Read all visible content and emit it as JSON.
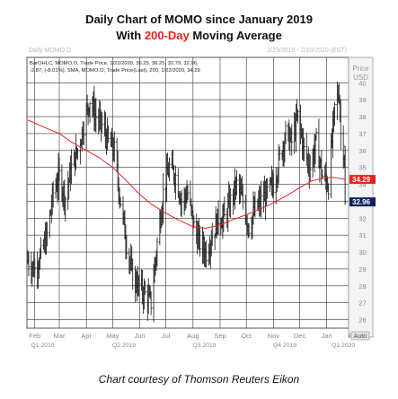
{
  "header": {
    "title_line1": "Daily Chart of MOMO since January 2019",
    "title_line2_pre": "With ",
    "title_line2_highlight": "200-Day",
    "title_line2_post": " Moving Average"
  },
  "panel": {
    "name": "Daily MOMO.O",
    "date_range": "1/23/2019 - 2/10/2020 (EST)",
    "price_header": "Price",
    "currency": "USD",
    "auto_label": "Auto",
    "legend_line1": "BarOHLC, MOMO.O, Trade Price, 1/22/2020, 36.25, 36.25, 32.79, 32.96,",
    "legend_line2": "-2.87, (-8.01%), SMA, MOMO.O, Trade Price(Last), 200, 1/22/2020, 34.29"
  },
  "caption": "Chart courtesy of Thomson Reuters Eikon",
  "colors": {
    "price_bars": "#111111",
    "sma_line": "#e8231f",
    "grid": "#333333",
    "sma_tag_bg": "#e8231f",
    "price_tag_bg": "#0d1f5c"
  },
  "chart_data": {
    "type": "ohlc",
    "title": "Daily Chart of MOMO since January 2019",
    "subtitle": "With 200-Day Moving Average",
    "ylabel": "Price USD",
    "ylim": [
      25.5,
      41.5
    ],
    "y_ticks": [
      26,
      27,
      28,
      29,
      30,
      31,
      32,
      33,
      34,
      35,
      36,
      37,
      38,
      39,
      40
    ],
    "x_tick_labels": [
      "Feb",
      "Mar",
      "Apr",
      "May",
      "Jun",
      "Jul",
      "Aug",
      "Sep",
      "Oct",
      "Nov",
      "Dec",
      "Jan",
      "Feb"
    ],
    "quarter_labels": [
      "Q1 2019",
      "Q2 2019",
      "Q3 2019",
      "Q4 2019",
      "Q1 2020"
    ],
    "grid": true,
    "last_bar": {
      "date": "1/22/2020",
      "open": 36.25,
      "high": 36.25,
      "low": 32.79,
      "close": 32.96,
      "change": -2.87,
      "change_pct": -8.01
    },
    "series": [
      {
        "name": "MOMO.O",
        "points": [
          {
            "x": "2019-01-24",
            "y": 29.5
          },
          {
            "x": "2019-02-01",
            "y": 29.0
          },
          {
            "x": "2019-02-08",
            "y": 29.8
          },
          {
            "x": "2019-02-15",
            "y": 31.0
          },
          {
            "x": "2019-02-22",
            "y": 33.5
          },
          {
            "x": "2019-03-01",
            "y": 34.5
          },
          {
            "x": "2019-03-08",
            "y": 33.2
          },
          {
            "x": "2019-03-15",
            "y": 35.0
          },
          {
            "x": "2019-03-22",
            "y": 36.0
          },
          {
            "x": "2019-03-29",
            "y": 37.5
          },
          {
            "x": "2019-04-05",
            "y": 39.0
          },
          {
            "x": "2019-04-12",
            "y": 38.0
          },
          {
            "x": "2019-04-19",
            "y": 37.5
          },
          {
            "x": "2019-04-26",
            "y": 36.5
          },
          {
            "x": "2019-05-03",
            "y": 36.0
          },
          {
            "x": "2019-05-10",
            "y": 33.0
          },
          {
            "x": "2019-05-17",
            "y": 30.5
          },
          {
            "x": "2019-05-24",
            "y": 28.5
          },
          {
            "x": "2019-05-31",
            "y": 28.0
          },
          {
            "x": "2019-06-07",
            "y": 27.5
          },
          {
            "x": "2019-06-14",
            "y": 27.0
          },
          {
            "x": "2019-06-21",
            "y": 30.5
          },
          {
            "x": "2019-06-28",
            "y": 33.5
          },
          {
            "x": "2019-07-05",
            "y": 35.0
          },
          {
            "x": "2019-07-12",
            "y": 34.5
          },
          {
            "x": "2019-07-19",
            "y": 33.0
          },
          {
            "x": "2019-07-26",
            "y": 33.5
          },
          {
            "x": "2019-08-02",
            "y": 31.5
          },
          {
            "x": "2019-08-09",
            "y": 30.5
          },
          {
            "x": "2019-08-16",
            "y": 30.0
          },
          {
            "x": "2019-08-23",
            "y": 31.0
          },
          {
            "x": "2019-08-30",
            "y": 32.0
          },
          {
            "x": "2019-09-06",
            "y": 32.0
          },
          {
            "x": "2019-09-13",
            "y": 33.0
          },
          {
            "x": "2019-09-20",
            "y": 34.0
          },
          {
            "x": "2019-09-27",
            "y": 33.0
          },
          {
            "x": "2019-10-04",
            "y": 31.5
          },
          {
            "x": "2019-10-11",
            "y": 32.5
          },
          {
            "x": "2019-10-18",
            "y": 33.0
          },
          {
            "x": "2019-10-25",
            "y": 33.5
          },
          {
            "x": "2019-11-01",
            "y": 34.0
          },
          {
            "x": "2019-11-08",
            "y": 35.5
          },
          {
            "x": "2019-11-15",
            "y": 37.0
          },
          {
            "x": "2019-11-22",
            "y": 36.5
          },
          {
            "x": "2019-11-29",
            "y": 38.0
          },
          {
            "x": "2019-12-06",
            "y": 36.0
          },
          {
            "x": "2019-12-13",
            "y": 35.0
          },
          {
            "x": "2019-12-20",
            "y": 36.5
          },
          {
            "x": "2019-12-27",
            "y": 34.5
          },
          {
            "x": "2020-01-03",
            "y": 34.0
          },
          {
            "x": "2020-01-10",
            "y": 38.5
          },
          {
            "x": "2020-01-15",
            "y": 39.5
          },
          {
            "x": "2020-01-17",
            "y": 37.0
          },
          {
            "x": "2020-01-21",
            "y": 35.8
          },
          {
            "x": "2020-01-22",
            "y": 32.96
          }
        ]
      },
      {
        "name": "SMA 200",
        "points": [
          {
            "x": "2019-01-24",
            "y": 37.8
          },
          {
            "x": "2019-02-15",
            "y": 37.3
          },
          {
            "x": "2019-03-01",
            "y": 37.0
          },
          {
            "x": "2019-03-15",
            "y": 36.5
          },
          {
            "x": "2019-04-01",
            "y": 36.0
          },
          {
            "x": "2019-04-15",
            "y": 35.6
          },
          {
            "x": "2019-05-01",
            "y": 35.0
          },
          {
            "x": "2019-05-15",
            "y": 34.3
          },
          {
            "x": "2019-06-01",
            "y": 33.4
          },
          {
            "x": "2019-06-15",
            "y": 32.8
          },
          {
            "x": "2019-07-01",
            "y": 32.3
          },
          {
            "x": "2019-07-15",
            "y": 31.9
          },
          {
            "x": "2019-08-01",
            "y": 31.5
          },
          {
            "x": "2019-08-15",
            "y": 31.4
          },
          {
            "x": "2019-09-01",
            "y": 31.6
          },
          {
            "x": "2019-09-15",
            "y": 31.9
          },
          {
            "x": "2019-10-01",
            "y": 32.2
          },
          {
            "x": "2019-10-15",
            "y": 32.5
          },
          {
            "x": "2019-11-01",
            "y": 32.9
          },
          {
            "x": "2019-11-15",
            "y": 33.3
          },
          {
            "x": "2019-12-01",
            "y": 33.8
          },
          {
            "x": "2019-12-15",
            "y": 34.2
          },
          {
            "x": "2020-01-01",
            "y": 34.4
          },
          {
            "x": "2020-01-10",
            "y": 34.4
          },
          {
            "x": "2020-01-22",
            "y": 34.29
          }
        ]
      }
    ],
    "tags": [
      {
        "series": "SMA 200",
        "value": 34.29,
        "label": "34.29"
      },
      {
        "series": "MOMO.O",
        "value": 32.96,
        "label": "32.96"
      }
    ]
  }
}
